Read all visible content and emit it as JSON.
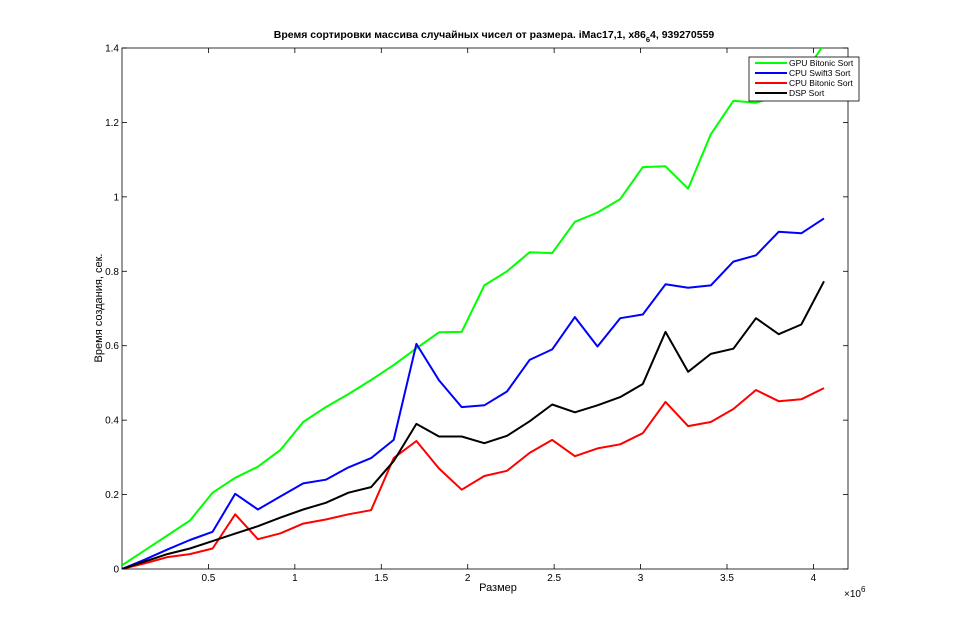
{
  "chart_data": {
    "type": "line",
    "title_main": "Время сортировки массива случайных чисел от размера. iMac17,1, x86",
    "title_sub": "6",
    "title_tail": "4, 939270559",
    "xlabel": "Размер",
    "ylabel": "Время создания, сек.",
    "x_exponent_base": "×10",
    "x_exponent_power": "6",
    "xlim": [
      0,
      4200000
    ],
    "ylim": [
      0,
      1.4
    ],
    "x_ticks": [
      500000,
      1000000,
      1500000,
      2000000,
      2500000,
      3000000,
      3500000,
      4000000
    ],
    "x_tick_labels": [
      "0.5",
      "1",
      "1.5",
      "2",
      "2.5",
      "3",
      "3.5",
      "4"
    ],
    "y_ticks": [
      0,
      0.2,
      0.4,
      0.6,
      0.8,
      1.0,
      1.2,
      1.4
    ],
    "y_tick_labels": [
      "0",
      "0.2",
      "0.4",
      "0.6",
      "0.8",
      "1",
      "1.2",
      "1.4"
    ],
    "grid": false,
    "legend_position": "top-right",
    "x": [
      0,
      131000,
      262000,
      393000,
      524000,
      655000,
      786000,
      917000,
      1048000,
      1179000,
      1310000,
      1441000,
      1572000,
      1703000,
      1834000,
      1965000,
      2096000,
      2227000,
      2358000,
      2489000,
      2620000,
      2751000,
      2882000,
      3013000,
      3144000,
      3275000,
      3406000,
      3537000,
      3668000,
      3799000,
      3930000,
      4061000
    ],
    "series": [
      {
        "name": "GPU Bitonic Sort",
        "color": "#00ff00",
        "values": [
          0.01,
          0.05,
          0.09,
          0.13,
          0.205,
          0.245,
          0.275,
          0.32,
          0.395,
          0.435,
          0.47,
          0.508,
          0.548,
          0.593,
          0.636,
          0.637,
          0.762,
          0.8,
          0.851,
          0.849,
          0.933,
          0.958,
          0.994,
          1.08,
          1.082,
          1.022,
          1.168,
          1.258,
          1.253,
          1.271,
          1.32,
          1.41
        ]
      },
      {
        "name": "CPU Swift3 Sort",
        "color": "#0000ff",
        "values": [
          0.0,
          0.025,
          0.052,
          0.078,
          0.1,
          0.202,
          0.16,
          0.195,
          0.23,
          0.24,
          0.273,
          0.298,
          0.347,
          0.605,
          0.507,
          0.435,
          0.44,
          0.477,
          0.562,
          0.59,
          0.677,
          0.598,
          0.674,
          0.684,
          0.765,
          0.756,
          0.762,
          0.826,
          0.843,
          0.906,
          0.902,
          0.942
        ]
      },
      {
        "name": "CPU Bitonic Sort",
        "color": "#ff0000",
        "values": [
          0.0,
          0.015,
          0.032,
          0.04,
          0.055,
          0.147,
          0.08,
          0.096,
          0.122,
          0.133,
          0.147,
          0.158,
          0.298,
          0.344,
          0.27,
          0.213,
          0.25,
          0.264,
          0.312,
          0.347,
          0.303,
          0.324,
          0.335,
          0.365,
          0.449,
          0.384,
          0.395,
          0.43,
          0.481,
          0.451,
          0.456,
          0.486
        ]
      },
      {
        "name": "DSP Sort",
        "color": "#000000",
        "values": [
          0.0,
          0.02,
          0.04,
          0.055,
          0.075,
          0.095,
          0.115,
          0.138,
          0.16,
          0.178,
          0.205,
          0.22,
          0.29,
          0.39,
          0.356,
          0.356,
          0.338,
          0.358,
          0.397,
          0.442,
          0.421,
          0.44,
          0.462,
          0.497,
          0.637,
          0.53,
          0.578,
          0.592,
          0.674,
          0.631,
          0.657,
          0.773
        ]
      }
    ]
  }
}
